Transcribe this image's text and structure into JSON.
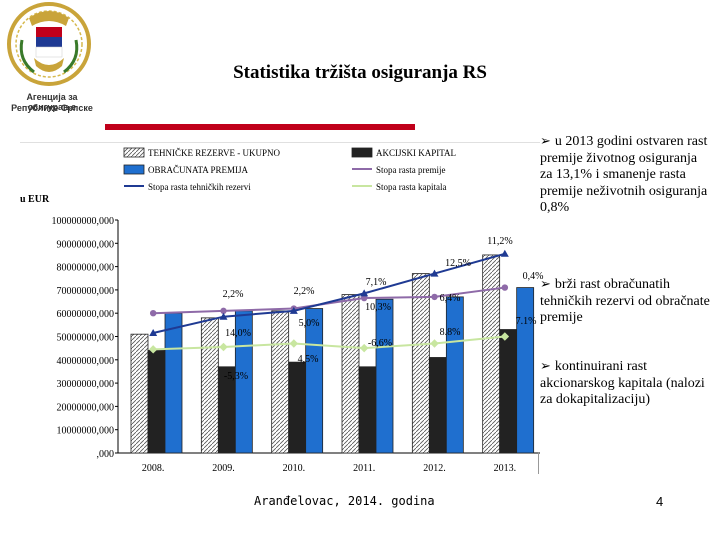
{
  "header": {
    "title": "Statistika  tržišta osiguranja RS",
    "logo_caption_line1": "Агенција за осигурање",
    "logo_caption_line2": "Републике Српске"
  },
  "chart_data": {
    "type": "bar",
    "unit_label": "u EUR",
    "categories": [
      "2008.",
      "2009.",
      "2010.",
      "2011.",
      "2012.",
      "2013."
    ],
    "ylim": [
      0,
      100000000
    ],
    "y_ticks": [
      "100000000,000",
      "90000000,000",
      "80000000,000",
      "70000000,000",
      "60000000,000",
      "50000000,000",
      "40000000,000",
      "30000000,000",
      "20000000,000",
      "10000000,000",
      ",000"
    ],
    "series": [
      {
        "name": "TEHNIČKE REZERVE - UKUPNO",
        "kind": "bar",
        "color": "#ffffff",
        "values": [
          51000000,
          58000000,
          61000000,
          68000000,
          77000000,
          85000000
        ]
      },
      {
        "name": "AKCIJSKI KAPITAL",
        "kind": "bar",
        "color": "#222222",
        "values": [
          44000000,
          37000000,
          39000000,
          37000000,
          41000000,
          53000000
        ]
      },
      {
        "name": "OBRAČUNATA PREMIJA",
        "kind": "bar",
        "color": "#1f6fcf",
        "values": [
          60000000,
          61000000,
          62000000,
          66000000,
          67000000,
          71000000
        ]
      },
      {
        "name": "Stopa rasta premije",
        "kind": "line",
        "color": "#8e6aa8",
        "values": [
          60000000,
          61000000,
          62000000,
          66500000,
          67000000,
          71000000
        ]
      },
      {
        "name": "Stopa rasta tehničkih rezervi",
        "kind": "line",
        "color": "#1f3a93",
        "values": [
          51500000,
          58500000,
          61000000,
          68500000,
          77000000,
          85500000
        ]
      },
      {
        "name": "Stopa rasta kapitala",
        "kind": "line",
        "color": "#c8e6a0",
        "values": [
          44500000,
          45500000,
          47000000,
          45000000,
          47000000,
          50000000
        ]
      }
    ],
    "annotations": [
      "11,2%",
      "12,5%",
      "0,4%",
      "7,1%",
      "6,4%",
      "2,2%",
      "2,2%",
      "10,3%",
      "5,0%",
      "7.1%",
      "14,0%",
      "8.8%",
      "-6,6%",
      "4,5%",
      "-5,3%"
    ]
  },
  "bullets": [
    {
      "text": "u 2013 godini ostvaren rast premije životnog osiguranja za 13,1% i smanenje rasta premije neživotnih osiguranja 0,8%"
    },
    {
      "text": "brži rast obračunatih tehničkih rezervi od obračnate premije"
    },
    {
      "text": "kontinuirani rast akcionarskog kapitala (nalozi za dokapitalizaciju)"
    }
  ],
  "footer": {
    "place": "Aranđelovac, 2014. godina",
    "page": "4"
  },
  "colors": {
    "title_bar": "#c0001a"
  }
}
